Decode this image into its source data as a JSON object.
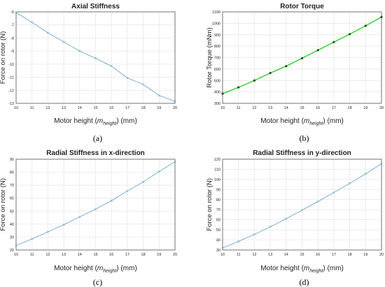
{
  "chart_data": [
    {
      "id": "a",
      "type": "line",
      "title": "Axial Stiffness",
      "xlabel": "Motor height (",
      "xlabel_var": "m",
      "xlabel_sub": "height",
      "xlabel_end": ") (mm)",
      "ylabel": "Force on rotor (N)",
      "caption": "(a)",
      "xlim": [
        10,
        20
      ],
      "ylim": [
        -13,
        -6
      ],
      "xticks": [
        "10",
        "11",
        "12",
        "13",
        "14",
        "15",
        "16",
        "17",
        "18",
        "19",
        "20"
      ],
      "yticks": [
        "-13",
        "-12",
        "-11",
        "-10",
        "-9",
        "-8",
        "-7",
        "-6"
      ],
      "grid": true,
      "line_color": "#6fa8c8",
      "marker_color": "#6fa8c8",
      "series": [
        {
          "x": [
            10,
            11,
            12,
            13,
            14,
            15,
            16,
            17,
            18,
            19,
            20
          ],
          "values": [
            -6.05,
            -6.8,
            -7.6,
            -8.3,
            -9.0,
            -9.55,
            -10.15,
            -11.05,
            -11.55,
            -12.4,
            -12.85
          ]
        }
      ]
    },
    {
      "id": "b",
      "type": "line",
      "title": "Rotor Torque",
      "xlabel": "Motor height (",
      "xlabel_var": "m",
      "xlabel_sub": "height",
      "xlabel_end": ") (mm)",
      "ylabel": "Rotor Torque (mNm)",
      "caption": "(b)",
      "xlim": [
        10,
        20
      ],
      "ylim": [
        300,
        1100
      ],
      "xticks": [
        "10",
        "11",
        "12",
        "13",
        "14",
        "15",
        "16",
        "17",
        "18",
        "19",
        "20"
      ],
      "yticks": [
        "300",
        "400",
        "500",
        "600",
        "700",
        "800",
        "900",
        "1000",
        "1100"
      ],
      "grid": true,
      "line_color": "#2ecc2e",
      "marker_color": "#2a4a2a",
      "series": [
        {
          "x": [
            10,
            11,
            12,
            13,
            14,
            15,
            16,
            17,
            18,
            19,
            20
          ],
          "values": [
            385,
            440,
            500,
            565,
            625,
            695,
            765,
            835,
            905,
            978,
            1055
          ]
        }
      ]
    },
    {
      "id": "c",
      "type": "line",
      "title": "Radial Stiffness in x-direction",
      "xlabel": "Motor height (",
      "xlabel_var": "m",
      "xlabel_sub": "height",
      "xlabel_end": ") (mm)",
      "ylabel": "Force on rotor (N)",
      "caption": "(c)",
      "xlim": [
        10,
        20
      ],
      "ylim": [
        20,
        90
      ],
      "xticks": [
        "10",
        "11",
        "12",
        "13",
        "14",
        "15",
        "16",
        "17",
        "18",
        "19",
        "20"
      ],
      "yticks": [
        "20",
        "30",
        "40",
        "50",
        "60",
        "70",
        "80",
        "90"
      ],
      "grid": true,
      "line_color": "#6fa8c8",
      "marker_color": "#6fa8c8",
      "series": [
        {
          "x": [
            10,
            11,
            12,
            13,
            14,
            15,
            16,
            17,
            18,
            19,
            20
          ],
          "values": [
            23.5,
            28.5,
            34,
            39.5,
            45.5,
            51.5,
            58,
            65.5,
            72.5,
            80.5,
            88
          ]
        }
      ]
    },
    {
      "id": "d",
      "type": "line",
      "title": "Radial Stiffness in y-direction",
      "xlabel": "Motor height (",
      "xlabel_var": "m",
      "xlabel_sub": "height",
      "xlabel_end": ") (mm)",
      "ylabel": "Force on rotor (N)",
      "caption": "(d)",
      "xlim": [
        10,
        20
      ],
      "ylim": [
        30,
        120
      ],
      "xticks": [
        "10",
        "11",
        "12",
        "13",
        "14",
        "15",
        "16",
        "17",
        "18",
        "19",
        "20"
      ],
      "yticks": [
        "30",
        "40",
        "50",
        "60",
        "70",
        "80",
        "90",
        "100",
        "110",
        "120"
      ],
      "grid": true,
      "line_color": "#6fa8c8",
      "marker_color": "#6fa8c8",
      "series": [
        {
          "x": [
            10,
            11,
            12,
            13,
            14,
            15,
            16,
            17,
            18,
            19,
            20
          ],
          "values": [
            32,
            38.5,
            45.5,
            53,
            61,
            69.5,
            78,
            87,
            96,
            105.5,
            115.5
          ]
        }
      ]
    }
  ]
}
